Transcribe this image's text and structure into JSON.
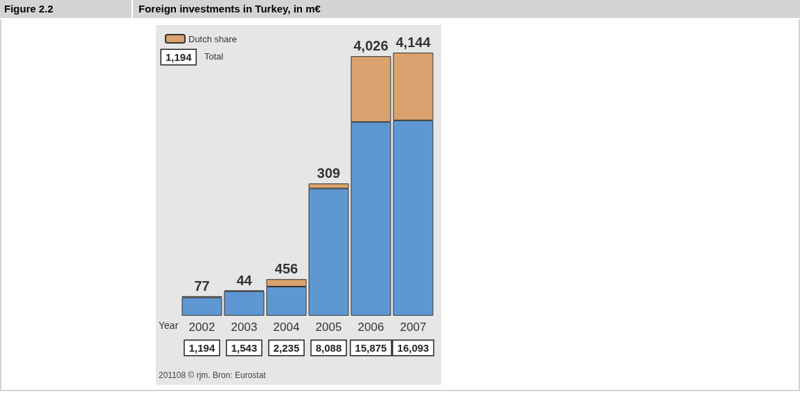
{
  "chart_data": {
    "type": "bar",
    "title": "Foreign investments in Turkey, in m€",
    "subtitle": "Figure 2.2",
    "xlabel": "Year",
    "categories": [
      "2002",
      "2003",
      "2004",
      "2005",
      "2006",
      "2007"
    ],
    "stacked": true,
    "series": [
      {
        "color": "#5f97d3",
        "values": [
          1117,
          1499,
          1779,
          7779,
          11849,
          11949
        ]
      },
      {
        "name": "Dutch share",
        "color": "#d9a26e",
        "values": [
          77,
          44,
          456,
          309,
          4026,
          4144
        ],
        "value_labels": [
          "77",
          "44",
          "456",
          "309",
          "4,026",
          "4,144"
        ]
      }
    ],
    "totals": [
      "1,194",
      "1,543",
      "2,235",
      "8,088",
      "15,875",
      "16,093"
    ],
    "legend": "top left",
    "annotations": [
      "Total",
      "201108 © rjm. Bron: Eurostat"
    ]
  }
}
